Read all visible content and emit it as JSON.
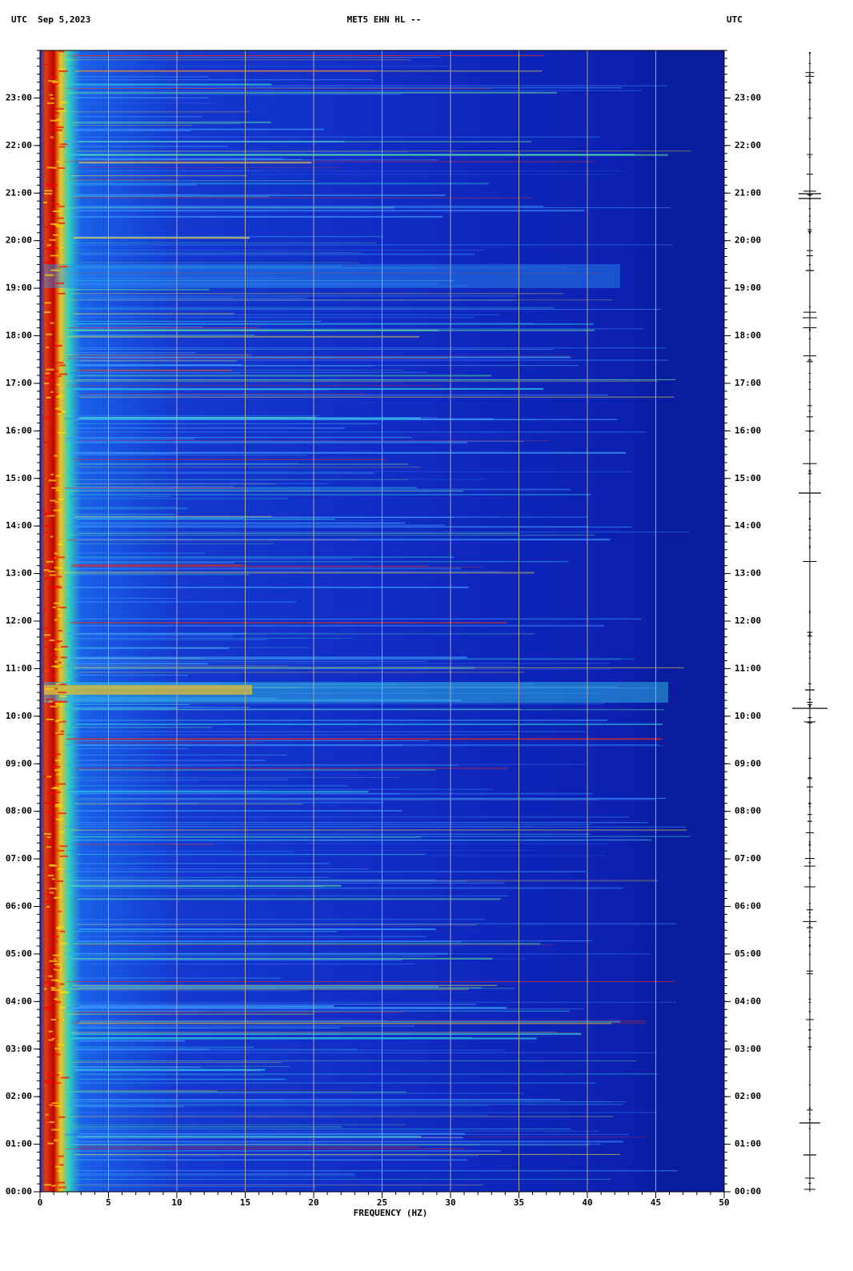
{
  "chart_data": {
    "type": "spectrogram",
    "title": "MET5 EHN HL --",
    "date_label": "UTC  Sep 5,2023",
    "timezone_label": "UTC",
    "xlabel": "FREQUENCY (HZ)",
    "xlim": [
      0,
      50
    ],
    "xticks": [
      0,
      5,
      10,
      15,
      20,
      25,
      30,
      35,
      40,
      45,
      50
    ],
    "ylim": [
      0,
      24
    ],
    "yticks": [
      {
        "value": 0,
        "label": "00:00"
      },
      {
        "value": 1,
        "label": "01:00"
      },
      {
        "value": 2,
        "label": "02:00"
      },
      {
        "value": 3,
        "label": "03:00"
      },
      {
        "value": 4,
        "label": "04:00"
      },
      {
        "value": 5,
        "label": "05:00"
      },
      {
        "value": 6,
        "label": "06:00"
      },
      {
        "value": 7,
        "label": "07:00"
      },
      {
        "value": 8,
        "label": "08:00"
      },
      {
        "value": 9,
        "label": "09:00"
      },
      {
        "value": 10,
        "label": "10:00"
      },
      {
        "value": 11,
        "label": "11:00"
      },
      {
        "value": 12,
        "label": "12:00"
      },
      {
        "value": 13,
        "label": "13:00"
      },
      {
        "value": 14,
        "label": "14:00"
      },
      {
        "value": 15,
        "label": "15:00"
      },
      {
        "value": 16,
        "label": "16:00"
      },
      {
        "value": 17,
        "label": "17:00"
      },
      {
        "value": 18,
        "label": "18:00"
      },
      {
        "value": 19,
        "label": "19:00"
      },
      {
        "value": 20,
        "label": "20:00"
      },
      {
        "value": 21,
        "label": "21:00"
      },
      {
        "value": 22,
        "label": "22:00"
      },
      {
        "value": 23,
        "label": "23:00"
      }
    ],
    "grid": true
  }
}
